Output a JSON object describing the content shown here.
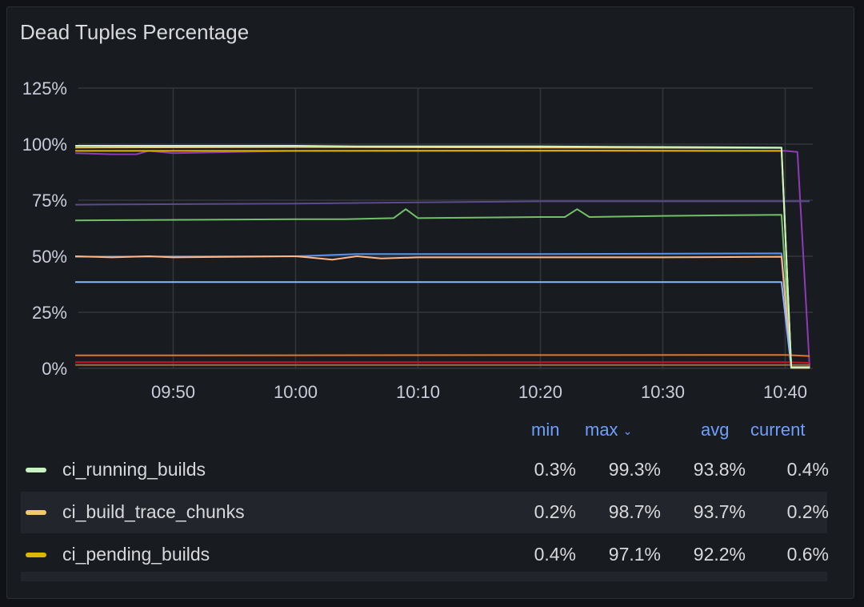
{
  "panel": {
    "title": "Dead Tuples Percentage"
  },
  "chart_data": {
    "type": "line",
    "title": "Dead Tuples Percentage",
    "y_ticks": [
      "0%",
      "25%",
      "50%",
      "75%",
      "100%",
      "125%"
    ],
    "x_ticks": [
      "09:50",
      "10:00",
      "10:10",
      "10:20",
      "10:30",
      "10:40"
    ],
    "ylim": [
      0,
      125
    ],
    "grid": true,
    "series": [
      {
        "name": "",
        "color": "#8f3bb8",
        "x": [
          "09:42",
          "09:45",
          "09:47",
          "09:48",
          "09:50",
          "09:55",
          "10:00",
          "10:20",
          "10:40",
          "10:41",
          "10:42"
        ],
        "y": [
          96,
          95.5,
          95.5,
          97,
          96,
          96.5,
          97,
          97,
          97,
          96.5,
          0
        ]
      },
      {
        "name": "",
        "color": "#5d4a8c",
        "x": [
          "09:42",
          "10:00",
          "10:20",
          "10:40",
          "10:42"
        ],
        "y": [
          73,
          73.5,
          74.5,
          74.5,
          74.5
        ]
      },
      {
        "name": "",
        "color": "#73bf69",
        "x": [
          "09:42",
          "10:00",
          "10:04",
          "10:08",
          "10:09",
          "10:10",
          "10:20",
          "10:22",
          "10:23",
          "10:24",
          "10:30",
          "10:39.7",
          "10:40.5"
        ],
        "y": [
          66,
          66.5,
          66.5,
          67,
          71,
          67,
          67.5,
          67.5,
          71,
          67.5,
          68,
          68.5,
          0
        ]
      },
      {
        "name": "",
        "color": "#5794f2",
        "x": [
          "09:42",
          "10:00",
          "10:05",
          "10:20",
          "10:39.7",
          "10:40.5"
        ],
        "y": [
          49.8,
          50,
          51,
          51,
          51.3,
          0
        ]
      },
      {
        "name": "",
        "color": "#ffb68a",
        "x": [
          "09:42",
          "09:45",
          "09:48",
          "09:50",
          "10:00",
          "10:03",
          "10:05",
          "10:07",
          "10:10",
          "10:20",
          "10:30",
          "10:39.7",
          "10:40.5"
        ],
        "y": [
          50,
          49.5,
          50,
          49.5,
          50,
          48.5,
          50,
          49,
          49.5,
          49.5,
          49.5,
          49.8,
          0
        ]
      },
      {
        "name": "",
        "color": "#8ab8ff",
        "x": [
          "09:42",
          "10:39.7",
          "10:40.5"
        ],
        "y": [
          38.5,
          38.5,
          0
        ]
      },
      {
        "name": "",
        "color": "#e0752d",
        "x": [
          "09:42",
          "10:40",
          "10:42"
        ],
        "y": [
          5.8,
          6,
          5.5
        ]
      },
      {
        "name": "",
        "color": "#c4162a",
        "x": [
          "09:42",
          "10:40",
          "10:42"
        ],
        "y": [
          2.8,
          2.8,
          2.5
        ]
      },
      {
        "name": "",
        "color": "#a16b3c",
        "x": [
          "09:42",
          "10:40",
          "10:42"
        ],
        "y": [
          1.5,
          1.5,
          1.5
        ]
      },
      {
        "name": "ci_pending_builds",
        "color": "#e0b400",
        "x": [
          "09:42",
          "10:00",
          "10:20",
          "10:39.7",
          "10:40.5",
          "10:42"
        ],
        "y": [
          97,
          97,
          97.1,
          97,
          0.6,
          0.6
        ]
      },
      {
        "name": "ci_build_trace_chunks",
        "color": "#f2c96d",
        "x": [
          "09:42",
          "10:00",
          "10:20",
          "10:39.7",
          "10:40.5",
          "10:42"
        ],
        "y": [
          98.5,
          98.7,
          98.5,
          98.3,
          0.2,
          0.2
        ]
      },
      {
        "name": "ci_running_builds",
        "color": "#c8f2c2",
        "x": [
          "09:42",
          "10:00",
          "10:05",
          "10:20",
          "10:39.7",
          "10:40.5",
          "10:42"
        ],
        "y": [
          99.3,
          99.3,
          99,
          99,
          98.5,
          0.4,
          0.4
        ]
      }
    ]
  },
  "legend": {
    "headers": {
      "min": "min",
      "max": "max",
      "avg": "avg",
      "current": "current"
    },
    "rows": [
      {
        "name": "ci_running_builds",
        "color": "#c8f2c2",
        "min": "0.3%",
        "max": "99.3%",
        "avg": "93.8%",
        "current": "0.4%"
      },
      {
        "name": "ci_build_trace_chunks",
        "color": "#f2c96d",
        "min": "0.2%",
        "max": "98.7%",
        "avg": "93.7%",
        "current": "0.2%"
      },
      {
        "name": "ci_pending_builds",
        "color": "#e0b400",
        "min": "0.4%",
        "max": "97.1%",
        "avg": "92.2%",
        "current": "0.6%"
      }
    ]
  }
}
